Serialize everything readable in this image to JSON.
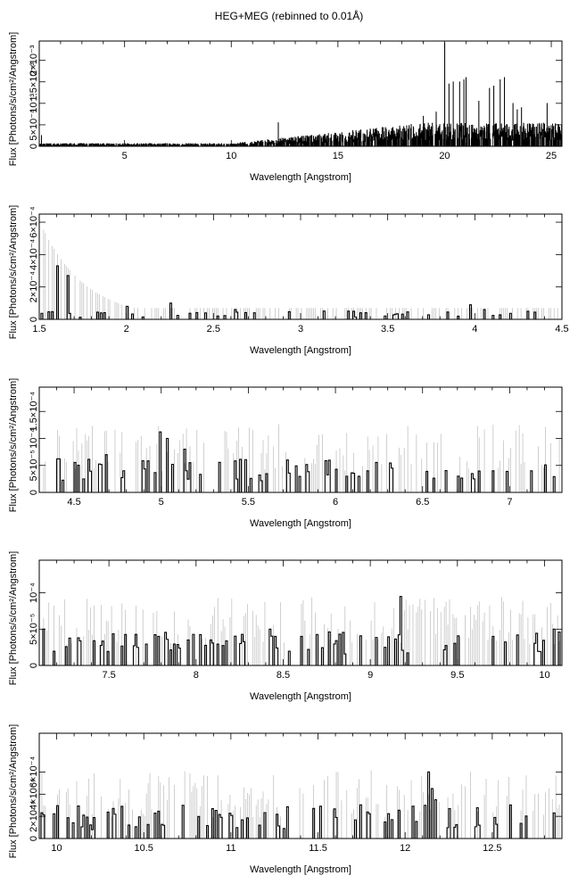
{
  "title": "HEG+MEG (rebinned to 0.01Å)",
  "chart_data": [
    {
      "type": "line",
      "xlabel": "Wavelength [Angstrom]",
      "ylabel": "Flux [Photons/s/cm²/Angstrom]",
      "xlim": [
        1.0,
        25.5
      ],
      "ylim": [
        0,
        0.00245
      ],
      "xticks": [
        5,
        10,
        15,
        20,
        25
      ],
      "ytick_labels": [
        {
          "value": 0,
          "label": "0"
        },
        {
          "value": 0.0005,
          "label": "5×10⁻⁴"
        },
        {
          "value": 0.001,
          "label": "10⁻³"
        },
        {
          "value": 0.0015,
          "label": "1.5×10⁻³"
        },
        {
          "value": 0.002,
          "label": "2×10⁻³"
        }
      ],
      "lines": [
        {
          "x": 1.1,
          "y": 0.00025
        },
        {
          "x": 12.2,
          "y": 0.00055
        },
        {
          "x": 19.0,
          "y": 0.0007
        },
        {
          "x": 20.0,
          "y": 0.0024
        },
        {
          "x": 20.4,
          "y": 0.0015
        },
        {
          "x": 20.7,
          "y": 0.0015
        },
        {
          "x": 21.0,
          "y": 0.0016
        },
        {
          "x": 20.2,
          "y": 0.00145
        },
        {
          "x": 19.6,
          "y": 0.0008
        },
        {
          "x": 20.9,
          "y": 0.00155
        },
        {
          "x": 21.6,
          "y": 0.00105
        },
        {
          "x": 22.1,
          "y": 0.00135
        },
        {
          "x": 22.3,
          "y": 0.0014
        },
        {
          "x": 22.8,
          "y": 0.0016
        },
        {
          "x": 22.6,
          "y": 0.00155
        },
        {
          "x": 23.2,
          "y": 0.001
        },
        {
          "x": 23.4,
          "y": 0.00085
        },
        {
          "x": 23.6,
          "y": 0.0009
        },
        {
          "x": 24.8,
          "y": 0.001
        }
      ],
      "continuum": {
        "x_start": 1.0,
        "x_end": 25.5,
        "base": 4e-05,
        "rise_start": 10.0,
        "rise_end": 19.0,
        "rise_peak": 0.0003
      }
    },
    {
      "type": "line",
      "xlabel": "Wavelength [Angstrom]",
      "ylabel": "Flux [Photons/s/cm²/Angstrom]",
      "xlim": [
        1.5,
        4.5
      ],
      "ylim": [
        0,
        0.00065
      ],
      "xticks": [
        1.5,
        2,
        2.5,
        3,
        3.5,
        4,
        4.5
      ],
      "ytick_labels": [
        {
          "value": 0,
          "label": "0"
        },
        {
          "value": 0.0002,
          "label": "2×10⁻⁴"
        },
        {
          "value": 0.0004,
          "label": "4×10⁻⁴"
        },
        {
          "value": 0.0006,
          "label": "6×10⁻⁴"
        }
      ],
      "lines": [
        {
          "x": 1.6,
          "y": 0.00033
        },
        {
          "x": 1.66,
          "y": 0.00027
        },
        {
          "x": 2.0,
          "y": 8e-05
        },
        {
          "x": 2.25,
          "y": 0.0001
        },
        {
          "x": 2.62,
          "y": 6e-05
        },
        {
          "x": 3.3,
          "y": 5e-05
        },
        {
          "x": 3.97,
          "y": 9e-05
        },
        {
          "x": 4.05,
          "y": 6e-05
        },
        {
          "x": 4.3,
          "y": 5e-05
        }
      ],
      "errors": {
        "max_at_start": 0.0006,
        "decay": 0.25,
        "floor": 7e-05
      }
    },
    {
      "type": "line",
      "xlabel": "Wavelength [Angstrom]",
      "ylabel": "Flux [Photons/s/cm²/Angstrom]",
      "xlim": [
        4.3,
        7.3
      ],
      "ylim": [
        0,
        0.000195
      ],
      "xticks": [
        4.5,
        5,
        5.5,
        6,
        6.5,
        7
      ],
      "ytick_labels": [
        {
          "value": 0,
          "label": "0"
        },
        {
          "value": 5e-05,
          "label": "5×10⁻⁵"
        },
        {
          "value": 0.0001,
          "label": "10⁻⁴"
        },
        {
          "value": 0.00015,
          "label": "1.5×10⁻⁴"
        }
      ],
      "lines": [
        {
          "x": 4.68,
          "y": 7e-05
        },
        {
          "x": 4.99,
          "y": 0.000112
        },
        {
          "x": 5.03,
          "y": 0.0001
        },
        {
          "x": 5.13,
          "y": 8e-05
        },
        {
          "x": 5.72,
          "y": 6e-05
        },
        {
          "x": 6.18,
          "y": 4e-05
        },
        {
          "x": 6.7,
          "y": 3e-05
        },
        {
          "x": 7.12,
          "y": 4e-05
        }
      ]
    },
    {
      "type": "line",
      "xlabel": "Wavelength [Angstrom]",
      "ylabel": "Flux [Photons/s/cm²/Angstrom]",
      "xlim": [
        7.1,
        10.1
      ],
      "ylim": [
        0,
        0.000145
      ],
      "xticks": [
        7.5,
        8,
        8.5,
        9,
        9.5,
        10
      ],
      "ytick_labels": [
        {
          "value": 0,
          "label": "0"
        },
        {
          "value": 5e-05,
          "label": "5×10⁻⁵"
        },
        {
          "value": 0.0001,
          "label": "10⁻⁴"
        }
      ],
      "lines": [
        {
          "x": 7.12,
          "y": 5e-05
        },
        {
          "x": 7.78,
          "y": 4e-05
        },
        {
          "x": 8.42,
          "y": 5e-05
        },
        {
          "x": 8.45,
          "y": 4e-05
        },
        {
          "x": 8.6,
          "y": 4e-05
        },
        {
          "x": 9.17,
          "y": 9.5e-05
        },
        {
          "x": 9.7,
          "y": 4e-05
        },
        {
          "x": 10.05,
          "y": 5e-05
        }
      ]
    },
    {
      "type": "line",
      "xlabel": "Wavelength [Angstrom]",
      "ylabel": "Flux [Photons/s/cm²/Angstrom]",
      "xlim": [
        9.9,
        12.9
      ],
      "ylim": [
        0,
        0.00095
      ],
      "xticks": [
        10,
        10.5,
        11,
        11.5,
        12,
        12.5
      ],
      "ytick_labels": [
        {
          "value": 0,
          "label": "0"
        },
        {
          "value": 0.0002,
          "label": "2×10⁻⁴"
        },
        {
          "value": 0.0004,
          "label": "4×10⁻⁴"
        },
        {
          "value": 0.0006,
          "label": "6×10⁻⁴"
        }
      ],
      "lines": [
        {
          "x": 12.13,
          "y": 0.0006
        },
        {
          "x": 12.15,
          "y": 0.00045
        },
        {
          "x": 12.17,
          "y": 0.00035
        },
        {
          "x": 12.11,
          "y": 0.0003
        },
        {
          "x": 11.88,
          "y": 0.00015
        },
        {
          "x": 11.92,
          "y": 0.00017
        },
        {
          "x": 12.42,
          "y": 0.00012
        },
        {
          "x": 11.3,
          "y": 9e-05
        },
        {
          "x": 10.2,
          "y": 8e-05
        }
      ]
    }
  ]
}
